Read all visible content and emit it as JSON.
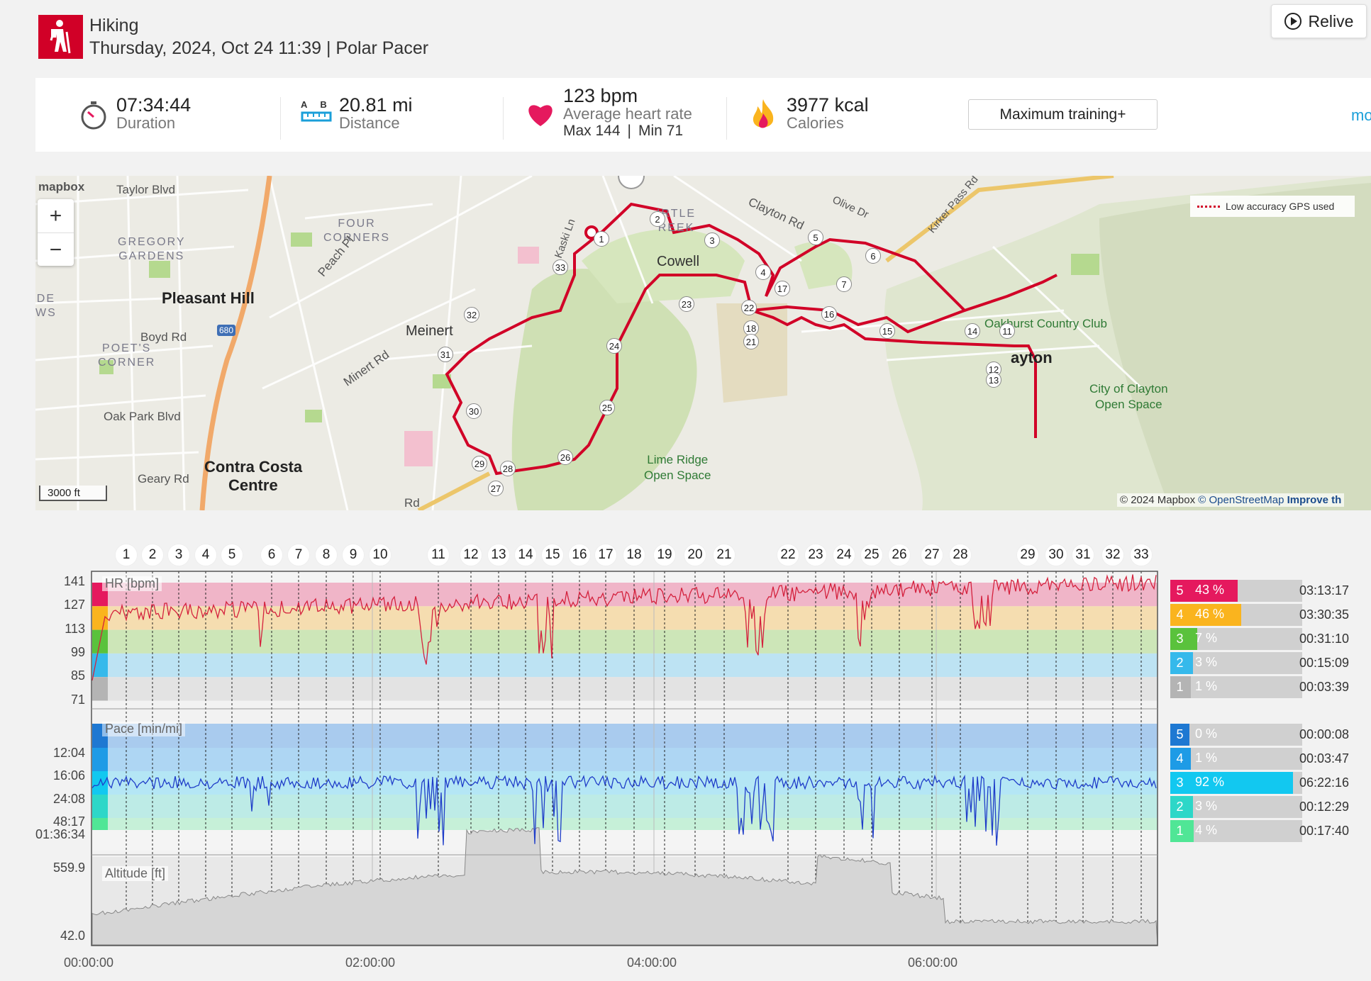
{
  "header": {
    "sport": "Hiking",
    "subtitle": "Thursday, 2024, Oct 24 11:39 | Polar Pacer",
    "relive_label": "Relive",
    "sport_icon": "hiker-icon",
    "brand_color": "#d10027"
  },
  "stats": {
    "duration": {
      "value": "07:34:44",
      "label": "Duration"
    },
    "distance": {
      "value": "20.81 mi",
      "label": "Distance",
      "a": "A",
      "b": "B"
    },
    "heart_rate": {
      "value": "123 bpm",
      "label": "Average heart rate",
      "max": "Max 144",
      "min": "Min 71",
      "sep": "|"
    },
    "calories": {
      "value": "3977 kcal",
      "label": "Calories"
    },
    "training_button": "Maximum training+",
    "more_link": "mo"
  },
  "map": {
    "logo": "mapbox",
    "legend": "Low accuracy GPS used",
    "scale": "3000 ft",
    "attribution": {
      "copy": "© 2024 Mapbox",
      "osm": "© OpenStreetMap",
      "improve": "Improve th"
    },
    "towns": [
      "Pleasant Hill",
      "Meinert",
      "Cowell",
      "Contra Costa",
      "Centre",
      "ayton"
    ],
    "areas": [
      "FOUR",
      "CORNERS",
      "GREGORY",
      "GARDENS",
      "POET'S",
      "CORNER",
      "DE",
      "WS",
      "IRTLE",
      "REEK"
    ],
    "roads": [
      "Taylor Blvd",
      "Peach Pl",
      "Boyd Rd",
      "Oak Park Blvd",
      "Geary Rd",
      "Minert Rd",
      "Kaski Ln",
      "Clayton Rd",
      "Olive Dr",
      "Kirker Pass Rd",
      "680",
      "Rd"
    ],
    "parks": [
      "Oakhurst Country Club",
      "City of Clayton",
      "Open Space",
      "Lime Ridge",
      "Open Space"
    ],
    "route_markers": [
      "1",
      "2",
      "3",
      "4",
      "5",
      "6",
      "7",
      "11",
      "12",
      "13",
      "14",
      "15",
      "16",
      "17",
      "18",
      "21",
      "22",
      "23",
      "24",
      "25",
      "26",
      "27",
      "28",
      "29",
      "30",
      "31",
      "32",
      "33"
    ],
    "route_color": "#d10027"
  },
  "laps": [
    "1",
    "2",
    "3",
    "4",
    "5",
    "6",
    "7",
    "8",
    "9",
    "10",
    "11",
    "12",
    "13",
    "14",
    "15",
    "16",
    "17",
    "18",
    "19",
    "20",
    "21",
    "22",
    "23",
    "24",
    "25",
    "26",
    "27",
    "28",
    "29",
    "30",
    "31",
    "32",
    "33"
  ],
  "hr_chart": {
    "label": "HR [bpm]",
    "ticks": [
      "141",
      "127",
      "113",
      "99",
      "85",
      "71"
    ],
    "zones": [
      {
        "num": "5",
        "pct": "43 %",
        "fraction": 0.43,
        "time": "03:13:17",
        "color": "#e5195e"
      },
      {
        "num": "4",
        "pct": "46 %",
        "fraction": 0.46,
        "time": "03:30:35",
        "color": "#fab41e"
      },
      {
        "num": "3",
        "pct": "7 %",
        "fraction": 0.07,
        "time": "00:31:10",
        "color": "#5ac23c"
      },
      {
        "num": "2",
        "pct": "3 %",
        "fraction": 0.03,
        "time": "00:15:09",
        "color": "#35b9eb"
      },
      {
        "num": "1",
        "pct": "1 %",
        "fraction": 0.01,
        "time": "00:03:39",
        "color": "#b4b4b4"
      }
    ]
  },
  "pace_chart": {
    "label": "Pace [min/mi]",
    "ticks": [
      "12:04",
      "16:06",
      "24:08",
      "48:17",
      "01:36:34"
    ],
    "zones": [
      {
        "num": "5",
        "pct": "0 %",
        "fraction": 0.0,
        "time": "00:00:08",
        "color": "#1e78d2"
      },
      {
        "num": "4",
        "pct": "1 %",
        "fraction": 0.01,
        "time": "00:03:47",
        "color": "#1e9be6"
      },
      {
        "num": "3",
        "pct": "92 %",
        "fraction": 0.92,
        "time": "06:22:16",
        "color": "#12c8f0"
      },
      {
        "num": "2",
        "pct": "3 %",
        "fraction": 0.03,
        "time": "00:12:29",
        "color": "#2dd7c8"
      },
      {
        "num": "1",
        "pct": "4 %",
        "fraction": 0.04,
        "time": "00:17:40",
        "color": "#50e696"
      }
    ]
  },
  "altitude_chart": {
    "label": "Altitude [ft]",
    "ticks": [
      "559.9",
      "42.0"
    ]
  },
  "time_axis": [
    "00:00:00",
    "02:00:00",
    "04:00:00",
    "06:00:00"
  ]
}
